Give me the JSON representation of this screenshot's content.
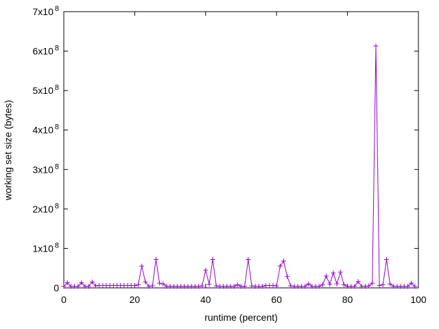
{
  "chart_data": {
    "type": "line",
    "title": "",
    "xlabel": "runtime (percent)",
    "ylabel": "working set size (bytes)",
    "xlim": [
      0,
      100
    ],
    "ylim": [
      0,
      700000000.0
    ],
    "x_ticks": [
      0,
      20,
      40,
      60,
      80,
      100
    ],
    "y_ticks": [
      0,
      100000000.0,
      200000000.0,
      300000000.0,
      400000000.0,
      500000000.0,
      600000000.0,
      700000000.0
    ],
    "y_tick_labels": [
      "0",
      "1x10^8",
      "2x10^8",
      "3x10^8",
      "4x10^8",
      "5x10^8",
      "6x10^8",
      "7x10^8"
    ],
    "grid": false,
    "legend_position": "none",
    "marker": "plus",
    "line_color": "#9400d3",
    "axis_color": "#000000",
    "background_color": "#ffffff",
    "series": [
      {
        "name": "working set size",
        "x_start": 0,
        "x_step": 1,
        "values": [
          4000000.0,
          13000000.0,
          4000000.0,
          4000000.0,
          4000000.0,
          13000000.0,
          4000000.0,
          4000000.0,
          15000000.0,
          5000000.0,
          6000000.0,
          6000000.0,
          6000000.0,
          6000000.0,
          6000000.0,
          6000000.0,
          6000000.0,
          6000000.0,
          6000000.0,
          6000000.0,
          6000000.0,
          8000000.0,
          55000000.0,
          15000000.0,
          4000000.0,
          5000000.0,
          72000000.0,
          12000000.0,
          10000000.0,
          4000000.0,
          4000000.0,
          4000000.0,
          4000000.0,
          4000000.0,
          4000000.0,
          4000000.0,
          4000000.0,
          4000000.0,
          4000000.0,
          5000000.0,
          45000000.0,
          9000000.0,
          72000000.0,
          5000000.0,
          4000000.0,
          4000000.0,
          4000000.0,
          4000000.0,
          4000000.0,
          8000000.0,
          4000000.0,
          4000000.0,
          72000000.0,
          5000000.0,
          4000000.0,
          4000000.0,
          4000000.0,
          6000000.0,
          6000000.0,
          6000000.0,
          5000000.0,
          55000000.0,
          68000000.0,
          29000000.0,
          5000000.0,
          4000000.0,
          4000000.0,
          4000000.0,
          4000000.0,
          10000000.0,
          4000000.0,
          4000000.0,
          4000000.0,
          8000000.0,
          30000000.0,
          9000000.0,
          38000000.0,
          10000000.0,
          40000000.0,
          8000000.0,
          4000000.0,
          4000000.0,
          4000000.0,
          16000000.0,
          4000000.0,
          4000000.0,
          5000000.0,
          12000000.0,
          613000000.0,
          6000000.0,
          8000000.0,
          72000000.0,
          10000000.0,
          4000000.0,
          4000000.0,
          4000000.0,
          4000000.0,
          4000000.0,
          12000000.0,
          4000000.0
        ]
      }
    ]
  }
}
